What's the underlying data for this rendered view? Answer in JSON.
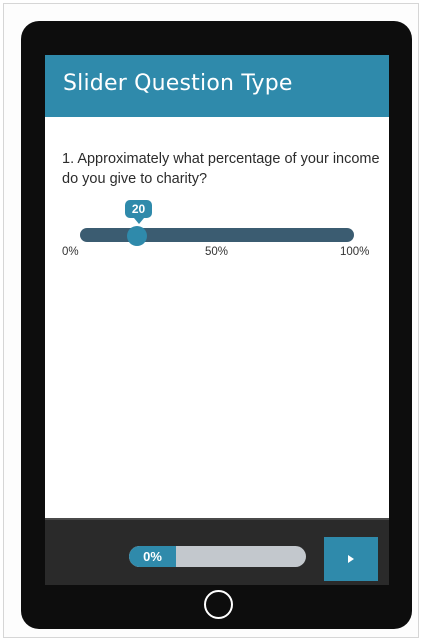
{
  "survey": {
    "title": "Slider Question Type",
    "question": "1. Approximately what percentage of your income do you give to charity?",
    "slider": {
      "value": "20",
      "min_label": "0%",
      "mid_label": "50%",
      "max_label": "100%"
    },
    "progress": {
      "label": "0%",
      "percent": 0
    },
    "next_icon": "play-icon"
  },
  "colors": {
    "accent": "#2f8aab",
    "track": "#3b5c71",
    "device": "#0d0d0d",
    "footer": "#2a2a2a",
    "progress_bg": "#c3c8cd"
  }
}
